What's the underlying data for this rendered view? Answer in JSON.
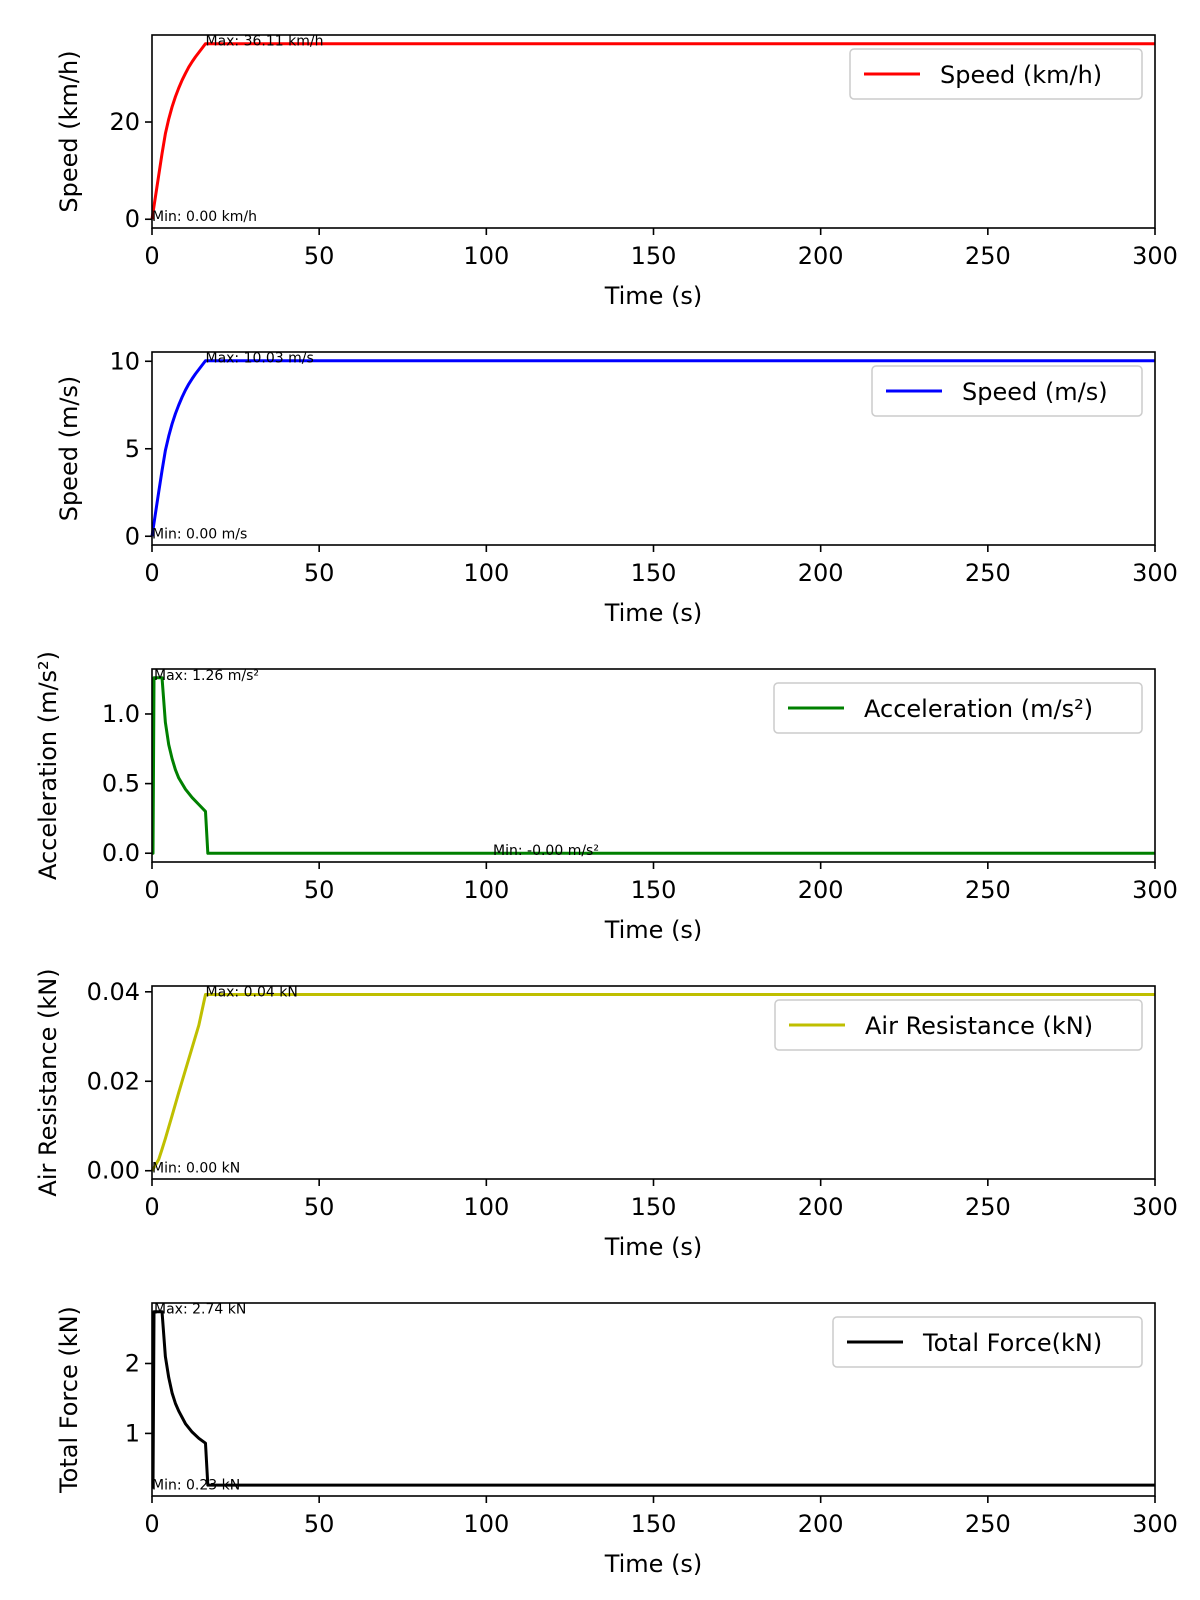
{
  "figure": {
    "background": "#ffffff"
  },
  "chart_data": [
    {
      "type": "line",
      "xlabel": "Time (s)",
      "ylabel": "Speed (km/h)",
      "xlim": [
        0,
        300
      ],
      "ylim": [
        -1.8,
        37.9
      ],
      "xticks": [
        0,
        50,
        100,
        150,
        200,
        250,
        300
      ],
      "yticks": [
        0,
        20
      ],
      "grid": false,
      "legend": {
        "position": "upper right"
      },
      "series": [
        {
          "name": "Speed (km/h)",
          "color": "#ff0000",
          "x": [
            0,
            1,
            2,
            3,
            4,
            5,
            6,
            7,
            8,
            9,
            10,
            11,
            12,
            13,
            14,
            15,
            16,
            300
          ],
          "y": [
            0,
            4.5,
            9,
            13.5,
            17.6,
            20.6,
            23.1,
            25.2,
            27,
            28.6,
            30,
            31.3,
            32.4,
            33.4,
            34.3,
            35.2,
            36.11,
            36.11
          ]
        }
      ],
      "annotations": [
        {
          "text": "Max: 36.11 km/h",
          "x": 16,
          "y": 36.11
        },
        {
          "text": "Min: 0.00 km/h",
          "x": 0,
          "y": 0
        }
      ]
    },
    {
      "type": "line",
      "xlabel": "Time (s)",
      "ylabel": "Speed (m/s)",
      "xlim": [
        0,
        300
      ],
      "ylim": [
        -0.5,
        10.53
      ],
      "xticks": [
        0,
        50,
        100,
        150,
        200,
        250,
        300
      ],
      "yticks": [
        0,
        5,
        10
      ],
      "grid": false,
      "legend": {
        "position": "upper right"
      },
      "series": [
        {
          "name": "Speed (m/s)",
          "color": "#0000ff",
          "x": [
            0,
            1,
            2,
            3,
            4,
            5,
            6,
            7,
            8,
            9,
            10,
            11,
            12,
            13,
            14,
            15,
            16,
            300
          ],
          "y": [
            0,
            1.26,
            2.52,
            3.75,
            4.9,
            5.72,
            6.42,
            7.0,
            7.5,
            7.95,
            8.35,
            8.7,
            9.0,
            9.28,
            9.53,
            9.78,
            10.03,
            10.03
          ]
        }
      ],
      "annotations": [
        {
          "text": "Max: 10.03 m/s",
          "x": 16,
          "y": 10.03
        },
        {
          "text": "Min: 0.00 m/s",
          "x": 0,
          "y": 0
        }
      ]
    },
    {
      "type": "line",
      "xlabel": "Time (s)",
      "ylabel": "Acceleration (m/s²)",
      "xlim": [
        0,
        300
      ],
      "ylim": [
        -0.063,
        1.323
      ],
      "xticks": [
        0,
        50,
        100,
        150,
        200,
        250,
        300
      ],
      "yticks": [
        0.0,
        0.5,
        1.0
      ],
      "ytick_labels": [
        "0.0",
        "0.5",
        "1.0"
      ],
      "grid": false,
      "legend": {
        "position": "upper right"
      },
      "series": [
        {
          "name": "Acceleration (m/s²)",
          "color": "#008000",
          "x": [
            0,
            0.3,
            0.6,
            3,
            4,
            5,
            6,
            7,
            8,
            10,
            12,
            14,
            16,
            16.7,
            300
          ],
          "y": [
            0,
            0,
            1.26,
            1.26,
            0.94,
            0.78,
            0.68,
            0.6,
            0.54,
            0.46,
            0.4,
            0.35,
            0.3,
            0,
            0
          ]
        }
      ],
      "annotations": [
        {
          "text": "Max: 1.26 m/s²",
          "x": 0.6,
          "y": 1.26
        },
        {
          "text": "Min: -0.00 m/s²",
          "x": 102,
          "y": 0
        }
      ]
    },
    {
      "type": "line",
      "xlabel": "Time (s)",
      "ylabel": "Air Resistance (kN)",
      "xlim": [
        0,
        300
      ],
      "ylim": [
        -0.00185,
        0.0413
      ],
      "xticks": [
        0,
        50,
        100,
        150,
        200,
        250,
        300
      ],
      "yticks": [
        0.0,
        0.02,
        0.04
      ],
      "ytick_labels": [
        "0.00",
        "0.02",
        "0.04"
      ],
      "grid": false,
      "legend": {
        "position": "upper right"
      },
      "series": [
        {
          "name": "Air Resistance (kN)",
          "color": "#bfbf00",
          "x": [
            0,
            1,
            2,
            3,
            4,
            6,
            8,
            10,
            12,
            14,
            16,
            300
          ],
          "y": [
            0,
            0.0012,
            0.0025,
            0.0048,
            0.0072,
            0.0123,
            0.0175,
            0.0225,
            0.0275,
            0.0325,
            0.0394,
            0.0394
          ]
        }
      ],
      "annotations": [
        {
          "text": "Max: 0.04 kN",
          "x": 16,
          "y": 0.0394
        },
        {
          "text": "Min: 0.00 kN",
          "x": 0,
          "y": 0
        }
      ]
    },
    {
      "type": "line",
      "xlabel": "Time (s)",
      "ylabel": "Total Force (kN)",
      "xlim": [
        0,
        300
      ],
      "ylim": [
        0.105,
        2.865
      ],
      "xticks": [
        0,
        50,
        100,
        150,
        200,
        250,
        300
      ],
      "yticks": [
        1,
        2
      ],
      "grid": false,
      "legend": {
        "position": "upper right"
      },
      "series": [
        {
          "name": "Total Force(kN)",
          "color": "#000000",
          "x": [
            0,
            0.3,
            0.6,
            3,
            4,
            5,
            6,
            7,
            8,
            10,
            12,
            14,
            16,
            16.7,
            300
          ],
          "y": [
            0.23,
            0.23,
            2.74,
            2.74,
            2.1,
            1.8,
            1.58,
            1.43,
            1.32,
            1.14,
            1.02,
            0.93,
            0.86,
            0.26,
            0.26
          ]
        }
      ],
      "annotations": [
        {
          "text": "Max: 2.74 kN",
          "x": 0.6,
          "y": 2.74
        },
        {
          "text": "Min: 0.23 kN",
          "x": 0,
          "y": 0.23
        }
      ]
    }
  ]
}
